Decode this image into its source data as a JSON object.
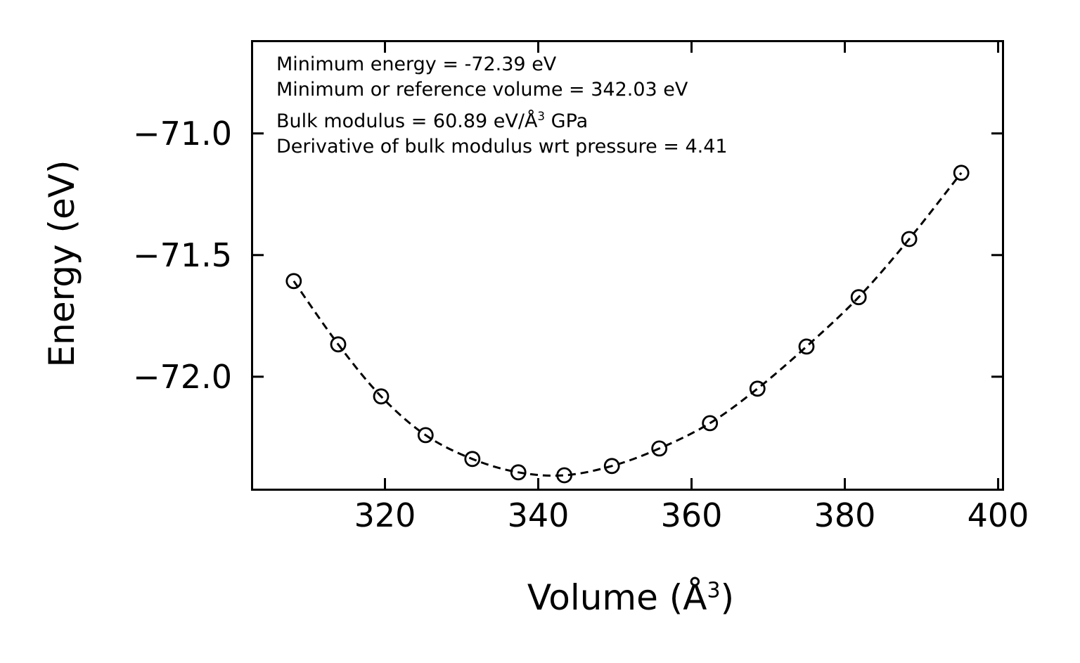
{
  "chart_data": {
    "type": "scatter",
    "title": "",
    "xlabel_pre": "Volume (Å",
    "xlabel_sup": "3",
    "xlabel_post": ")",
    "ylabel": "Energy (eV)",
    "x": [
      308.1,
      313.9,
      319.5,
      325.3,
      331.4,
      337.4,
      343.4,
      349.6,
      355.8,
      362.4,
      368.6,
      375.0,
      381.8,
      388.4,
      395.2
    ],
    "y": [
      -71.607,
      -71.867,
      -72.081,
      -72.24,
      -72.338,
      -72.393,
      -72.405,
      -72.367,
      -72.295,
      -72.191,
      -72.049,
      -71.876,
      -71.673,
      -71.434,
      -71.162
    ],
    "xlim": [
      302.8,
      400.5
    ],
    "ylim": [
      -72.46,
      -70.625
    ],
    "x_ticks": [
      320,
      340,
      360,
      380,
      400
    ],
    "x_tick_labels": [
      "320",
      "340",
      "360",
      "380",
      "400"
    ],
    "y_ticks": [
      -71.0,
      -71.5,
      -72.0
    ],
    "y_tick_labels": [
      "−71.0",
      "−71.5",
      "−72.0"
    ],
    "line_style": "dashed",
    "marker": "open-circle",
    "color": "#000000",
    "grid": false,
    "legend": "none",
    "annotations": {
      "line1": "Minimum energy = -72.39 eV",
      "line2": "Minimum or reference volume = 342.03 eV",
      "line3_pre": "Bulk modulus = 60.89 eV/Å",
      "line3_sup": "3",
      "line3_post": " GPa",
      "line4": "Derivative of bulk modulus wrt pressure = 4.41"
    },
    "fit_values": {
      "minimum_energy_eV": -72.39,
      "reference_volume": 342.03,
      "bulk_modulus": 60.89,
      "bulk_modulus_pressure_derivative": 4.41
    }
  }
}
